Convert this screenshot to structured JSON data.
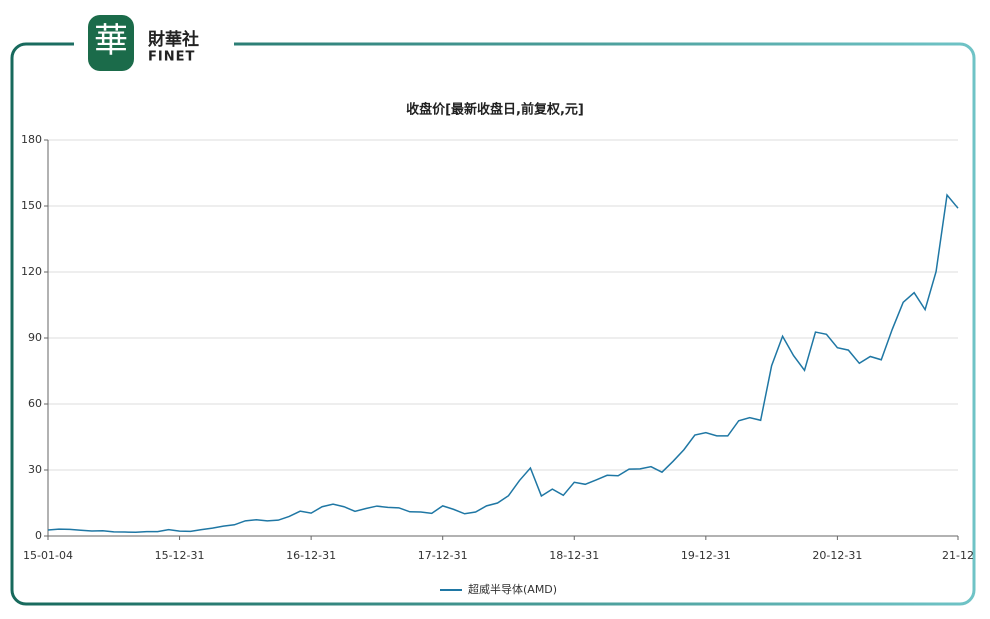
{
  "header": {
    "logo_char": "華",
    "brand": "財華社",
    "brand_en": "FINET"
  },
  "chart_data": {
    "type": "line",
    "title": "收盘价[最新收盘日,前复权,元]",
    "categories": [
      "15-01-04",
      null,
      null,
      null,
      null,
      null,
      null,
      null,
      null,
      null,
      null,
      null,
      "15-12-31",
      null,
      null,
      null,
      null,
      null,
      null,
      null,
      null,
      null,
      null,
      null,
      "16-12-31",
      null,
      null,
      null,
      null,
      null,
      null,
      null,
      null,
      null,
      null,
      null,
      "17-12-31",
      null,
      null,
      null,
      null,
      null,
      null,
      null,
      null,
      null,
      null,
      null,
      "18-12-31",
      null,
      null,
      null,
      null,
      null,
      null,
      null,
      null,
      null,
      null,
      null,
      "19-12-31",
      null,
      null,
      null,
      null,
      null,
      null,
      null,
      null,
      null,
      null,
      null,
      "20-12-31",
      null,
      null,
      null,
      null,
      null,
      null,
      null,
      null,
      null,
      null,
      "21-12"
    ],
    "series": [
      {
        "name": "超威半导体(AMD)",
        "color": "#1f77a4",
        "values": [
          2.7,
          3.1,
          3.0,
          2.6,
          2.3,
          2.4,
          1.9,
          1.8,
          1.7,
          2.0,
          2.0,
          2.9,
          2.2,
          2.1,
          2.9,
          3.6,
          4.5,
          5.1,
          6.9,
          7.4,
          6.9,
          7.2,
          8.9,
          11.3,
          10.4,
          13.3,
          14.5,
          13.3,
          11.2,
          12.5,
          13.6,
          13.0,
          12.8,
          11.0,
          10.9,
          10.3,
          13.7,
          12.1,
          10.1,
          10.9,
          13.7,
          15.0,
          18.3,
          25.2,
          30.9,
          18.2,
          21.3,
          18.5,
          24.4,
          23.5,
          25.5,
          27.6,
          27.4,
          30.4,
          30.5,
          31.5,
          29.0,
          33.9,
          39.2,
          45.9,
          47.0,
          45.5,
          45.5,
          52.4,
          53.8,
          52.6,
          77.4,
          90.8,
          82.0,
          75.3,
          92.7,
          91.7,
          85.6,
          84.5,
          78.5,
          81.6,
          80.1,
          93.9,
          106.2,
          110.6,
          102.9,
          120.2,
          155.0,
          149.0
        ]
      }
    ],
    "ylim": [
      0,
      180
    ],
    "yticks": [
      0,
      30,
      60,
      90,
      120,
      150,
      180
    ],
    "grid": true
  }
}
